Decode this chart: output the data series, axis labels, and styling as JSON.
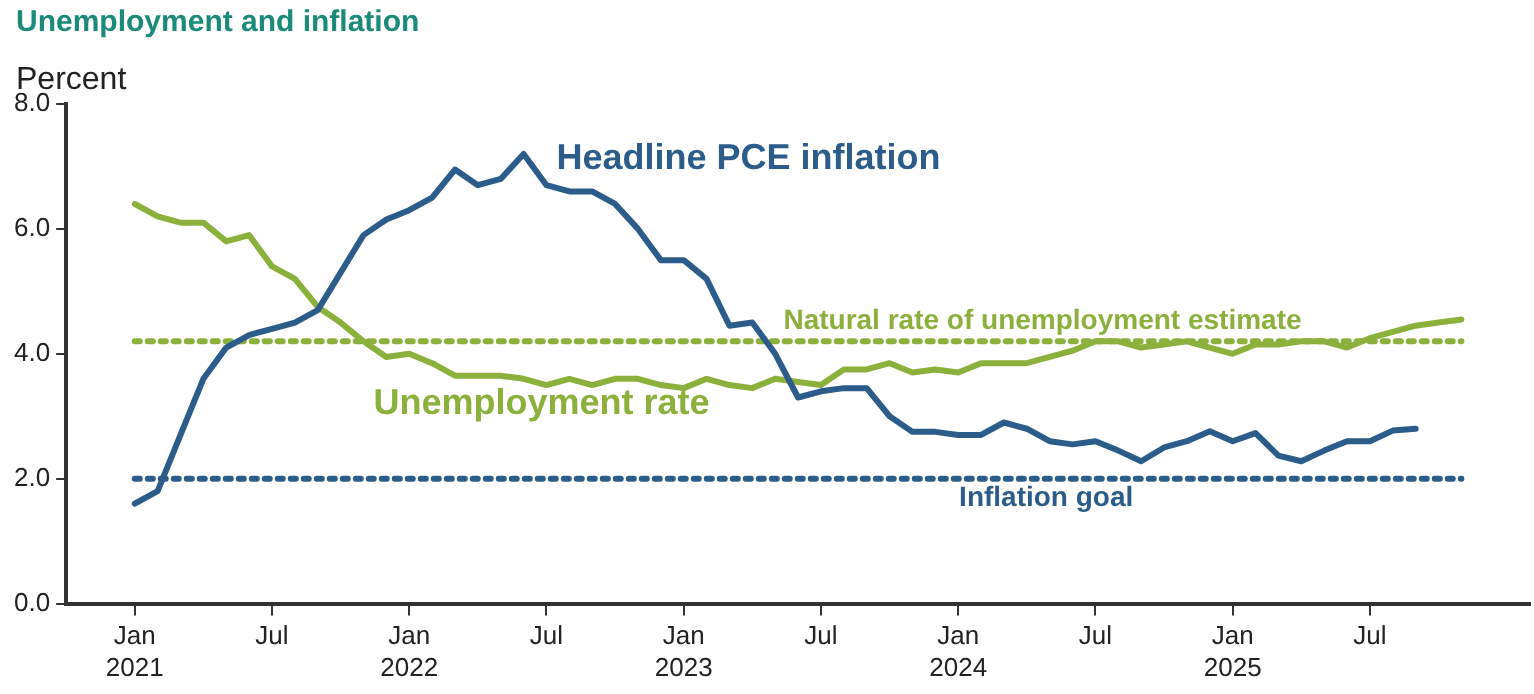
{
  "chart_data": {
    "type": "line",
    "title": "Unemployment and inflation",
    "ylabel": "Percent",
    "xlim": [
      "2020-10",
      "2026-02"
    ],
    "xticks": [
      {
        "value": "2021-01",
        "label": "Jan 2021"
      },
      {
        "value": "2021-07",
        "label": "Jul"
      },
      {
        "value": "2022-01",
        "label": "Jan 2022"
      },
      {
        "value": "2022-07",
        "label": "Jul"
      },
      {
        "value": "2023-01",
        "label": "Jan 2023"
      },
      {
        "value": "2023-07",
        "label": "Jul"
      },
      {
        "value": "2024-01",
        "label": "Jan 2024"
      },
      {
        "value": "2024-07",
        "label": "Jul"
      },
      {
        "value": "2025-01",
        "label": "Jan 2025"
      },
      {
        "value": "2025-07",
        "label": "Jul"
      }
    ],
    "ylim": [
      0,
      8
    ],
    "yticks": [
      {
        "value": 0,
        "label": "0.0"
      },
      {
        "value": 2,
        "label": "2.0"
      },
      {
        "value": 4,
        "label": "4.0"
      },
      {
        "value": 6,
        "label": "6.0"
      },
      {
        "value": 8,
        "label": "8.0"
      }
    ],
    "grid": false,
    "legend": false,
    "marker": "none",
    "line_style": "solid",
    "series": [
      {
        "name": "Headline PCE inflation",
        "color": "#2b5c8a",
        "x": [
          "2021-01",
          "2021-02",
          "2021-03",
          "2021-04",
          "2021-05",
          "2021-06",
          "2021-07",
          "2021-08",
          "2021-09",
          "2021-10",
          "2021-11",
          "2021-12",
          "2022-01",
          "2022-02",
          "2022-03",
          "2022-04",
          "2022-05",
          "2022-06",
          "2022-07",
          "2022-08",
          "2022-09",
          "2022-10",
          "2022-11",
          "2022-12",
          "2023-01",
          "2023-02",
          "2023-03",
          "2023-04",
          "2023-05",
          "2023-06",
          "2023-07",
          "2023-08",
          "2023-09",
          "2023-10",
          "2023-11",
          "2023-12",
          "2024-01",
          "2024-02",
          "2024-03",
          "2024-04",
          "2024-05",
          "2024-06",
          "2024-07",
          "2024-08",
          "2024-09",
          "2024-10",
          "2024-11",
          "2024-12",
          "2025-01",
          "2025-02",
          "2025-03",
          "2025-04",
          "2025-05",
          "2025-06",
          "2025-07",
          "2025-08",
          "2025-09"
        ],
        "values": [
          1.6,
          1.8,
          2.7,
          3.6,
          4.1,
          4.3,
          4.4,
          4.5,
          4.7,
          5.3,
          5.9,
          6.15,
          6.3,
          6.5,
          6.95,
          6.7,
          6.8,
          7.2,
          6.7,
          6.6,
          6.6,
          6.4,
          6.0,
          5.5,
          5.5,
          5.2,
          4.45,
          4.5,
          4.0,
          3.3,
          3.4,
          3.45,
          3.45,
          3.0,
          2.75,
          2.75,
          2.7,
          2.7,
          2.9,
          2.8,
          2.6,
          2.55,
          2.6,
          2.45,
          2.28,
          2.5,
          2.6,
          2.76,
          2.6,
          2.73,
          2.37,
          2.28,
          2.45,
          2.6,
          2.6,
          2.77,
          2.8
        ]
      },
      {
        "name": "Unemployment rate",
        "color": "#8cb03c",
        "x": [
          "2021-01",
          "2021-02",
          "2021-03",
          "2021-04",
          "2021-05",
          "2021-06",
          "2021-07",
          "2021-08",
          "2021-09",
          "2021-10",
          "2021-11",
          "2021-12",
          "2022-01",
          "2022-02",
          "2022-03",
          "2022-04",
          "2022-05",
          "2022-06",
          "2022-07",
          "2022-08",
          "2022-09",
          "2022-10",
          "2022-11",
          "2022-12",
          "2023-01",
          "2023-02",
          "2023-03",
          "2023-04",
          "2023-05",
          "2023-06",
          "2023-07",
          "2023-08",
          "2023-09",
          "2023-10",
          "2023-11",
          "2023-12",
          "2024-01",
          "2024-02",
          "2024-03",
          "2024-04",
          "2024-05",
          "2024-06",
          "2024-07",
          "2024-08",
          "2024-09",
          "2024-10",
          "2024-11",
          "2024-12",
          "2025-01",
          "2025-02",
          "2025-03",
          "2025-04",
          "2025-05",
          "2025-06",
          "2025-07",
          "2025-08",
          "2025-09",
          "2025-10",
          "2025-11"
        ],
        "values": [
          6.4,
          6.2,
          6.1,
          6.1,
          5.8,
          5.9,
          5.4,
          5.2,
          4.75,
          4.5,
          4.2,
          3.95,
          4.0,
          3.85,
          3.65,
          3.65,
          3.65,
          3.6,
          3.5,
          3.6,
          3.5,
          3.6,
          3.6,
          3.5,
          3.45,
          3.6,
          3.5,
          3.45,
          3.6,
          3.55,
          3.5,
          3.75,
          3.75,
          3.85,
          3.7,
          3.75,
          3.7,
          3.85,
          3.85,
          3.85,
          3.95,
          4.05,
          4.2,
          4.2,
          4.1,
          4.15,
          4.2,
          4.1,
          4.0,
          4.15,
          4.15,
          4.2,
          4.2,
          4.1,
          4.25,
          4.35,
          4.45,
          4.5,
          4.55
        ]
      }
    ],
    "ref_lines": [
      {
        "axis": "y",
        "value": 4.2,
        "label": "Natural rate of unemployment estimate",
        "color": "#8cb03c",
        "line_style": "dotted"
      },
      {
        "axis": "y",
        "value": 2,
        "label": "Inflation goal",
        "color": "#2b5c8a",
        "line_style": "dotted"
      }
    ]
  }
}
